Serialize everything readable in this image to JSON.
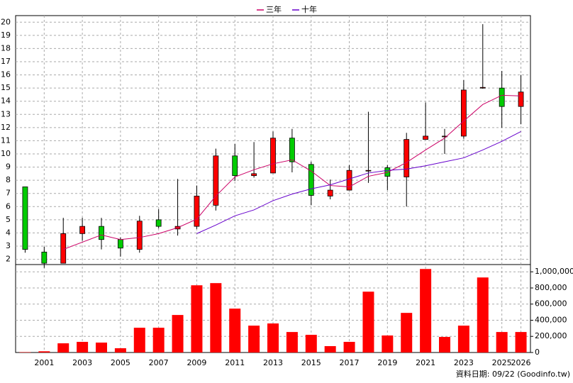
{
  "chart_data": {
    "type": "candlestick",
    "categories": [
      null,
      "2001",
      null,
      "2003",
      null,
      "2005",
      null,
      "2007",
      null,
      "2009",
      null,
      "2011",
      null,
      "2013",
      null,
      "2015",
      null,
      "2017",
      null,
      "2019",
      null,
      "2021",
      null,
      "2023",
      null,
      "2025",
      "2026"
    ],
    "open": [
      7.5,
      2.55,
      1.7,
      3.95,
      4.5,
      3.5,
      2.75,
      5.0,
      4.3,
      4.5,
      6.1,
      9.85,
      8.35,
      8.55,
      11.2,
      9.2,
      6.8,
      7.25,
      8.7,
      8.95,
      8.25,
      11.1,
      11.3,
      11.35,
      15.0,
      15.0,
      13.6
    ],
    "high": [
      7.5,
      2.95,
      5.15,
      5.15,
      5.15,
      3.65,
      5.3,
      5.8,
      8.1,
      7.6,
      10.4,
      10.75,
      10.9,
      11.7,
      11.9,
      9.4,
      8.05,
      9.15,
      13.2,
      9.15,
      11.6,
      13.9,
      11.9,
      15.6,
      19.85,
      16.3,
      16.0
    ],
    "low": [
      2.5,
      1.35,
      1.7,
      3.4,
      2.75,
      2.2,
      2.5,
      4.35,
      3.8,
      4.3,
      5.7,
      7.95,
      8.2,
      8.55,
      8.6,
      6.1,
      6.55,
      7.25,
      7.8,
      7.25,
      6.0,
      11.1,
      10.0,
      11.15,
      14.95,
      12.0,
      12.25
    ],
    "close": [
      2.75,
      1.7,
      3.95,
      4.5,
      3.5,
      2.85,
      4.9,
      4.5,
      4.5,
      6.8,
      9.85,
      8.35,
      8.5,
      11.2,
      9.4,
      6.85,
      7.25,
      8.75,
      8.75,
      8.3,
      11.1,
      11.35,
      11.35,
      14.85,
      15.05,
      13.6,
      14.7
    ],
    "up_color": "#ff0000",
    "down_color": "#00cc00",
    "series": [
      {
        "name": "三年",
        "color": "#cc0066",
        "values": [
          null,
          null,
          2.75,
          3.3,
          3.85,
          3.5,
          3.65,
          3.95,
          4.4,
          5.05,
          6.8,
          8.25,
          8.8,
          9.25,
          9.55,
          8.7,
          7.6,
          7.5,
          8.3,
          8.6,
          9.35,
          10.3,
          11.2,
          12.5,
          13.75,
          14.45,
          14.4
        ]
      },
      {
        "name": "十年",
        "color": "#6600cc",
        "values": [
          null,
          null,
          null,
          null,
          null,
          null,
          null,
          null,
          null,
          3.95,
          4.6,
          5.3,
          5.75,
          6.45,
          6.95,
          7.35,
          7.65,
          8.1,
          8.55,
          8.75,
          8.85,
          9.1,
          9.4,
          9.7,
          10.3,
          10.95,
          11.7
        ]
      }
    ],
    "ylim": [
      1.6,
      20.5
    ],
    "yticks": [
      2,
      3,
      4,
      5,
      6,
      7,
      8,
      9,
      10,
      11,
      12,
      13,
      14,
      15,
      16,
      17,
      18,
      19,
      20
    ],
    "grid": true,
    "volume": {
      "color": "#ff0000",
      "values": [
        5000,
        15000,
        114000,
        132000,
        123000,
        53000,
        307000,
        307000,
        465000,
        833000,
        860000,
        544000,
        333000,
        360000,
        254000,
        219000,
        79000,
        132000,
        754000,
        211000,
        491000,
        1035000,
        193000,
        333000,
        930000,
        254000,
        254000
      ],
      "ylim": [
        0,
        1090000
      ],
      "yticks": [
        0,
        {
          "value": 200000,
          "label": "200,000"
        },
        {
          "value": 400000,
          "label": "400,000"
        },
        {
          "value": 600000,
          "label": "600,000"
        },
        {
          "value": 800000,
          "label": "800,000"
        },
        {
          "value": 1000000,
          "label": "1,000,000"
        }
      ]
    },
    "footer": "資料日期: 09/22 (Goodinfo.tw)"
  }
}
